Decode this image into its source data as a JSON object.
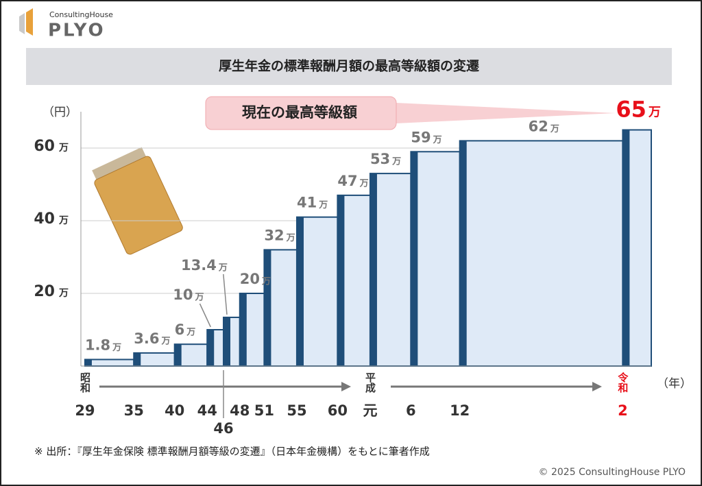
{
  "header": {
    "brand_small": "ConsultingHouse",
    "brand_large": "PLYO"
  },
  "chart_data": {
    "type": "step",
    "title": "厚生年金の標準報酬月額の最高等級額の変遷",
    "y_axis_label": "（円）",
    "x_axis_label": "（年）",
    "unit": "万",
    "annotation": "現在の最高等級額",
    "x": [
      1954,
      1960,
      1965,
      1969,
      1971,
      1973,
      1976,
      1980,
      1985,
      1989,
      1994,
      2000,
      2020
    ],
    "values": [
      1.8,
      3.6,
      6,
      10,
      13.4,
      20,
      32,
      41,
      47,
      53,
      59,
      62,
      65
    ],
    "color": "#1f4e79",
    "fill_color": "#dfeaf7",
    "highlight_color": "#e8101a",
    "xlim": [
      1953.5,
      2023.5
    ],
    "ylim": [
      0,
      70
    ],
    "yticks": [
      20,
      40,
      60
    ],
    "grid": true,
    "xticks": [
      {
        "value": 1954,
        "label": "29"
      },
      {
        "value": 1960,
        "label": "35"
      },
      {
        "value": 1965,
        "label": "40"
      },
      {
        "value": 1969,
        "label": "44"
      },
      {
        "value": 1971,
        "label": "46"
      },
      {
        "value": 1973,
        "label": "48"
      },
      {
        "value": 1976,
        "label": "51"
      },
      {
        "value": 1980,
        "label": "55"
      },
      {
        "value": 1985,
        "label": "60"
      },
      {
        "value": 1989,
        "label": "元"
      },
      {
        "value": 1994,
        "label": "6"
      },
      {
        "value": 2000,
        "label": "12"
      },
      {
        "value": 2020,
        "label": "2"
      }
    ],
    "era_labels": [
      {
        "label": "昭和",
        "x": 1954
      },
      {
        "label": "平成",
        "x": 1989
      },
      {
        "label": "令和",
        "x": 2020
      }
    ]
  },
  "footer": {
    "source": "※ 出所：『厚生年金保険 標準報酬月額等級の変遷』（日本年金機構）をもとに筆者作成",
    "copyright": "© 2025 ConsultingHouse PLYO"
  }
}
